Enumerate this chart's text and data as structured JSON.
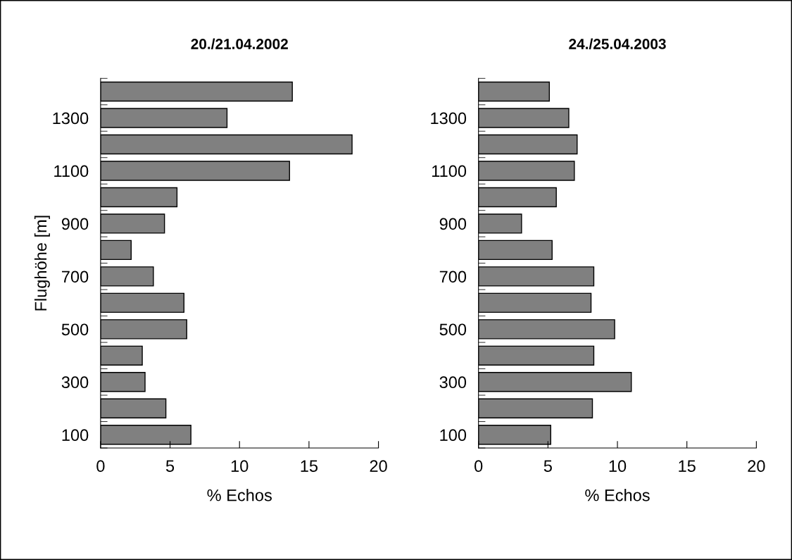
{
  "chart_data": [
    {
      "type": "bar",
      "orientation": "horizontal",
      "title": "20./21.04.2002",
      "xlabel": "% Echos",
      "ylabel": "Flughöhe [m]",
      "categories": [
        null,
        "1300",
        null,
        "1100",
        null,
        "900",
        null,
        "700",
        null,
        "500",
        null,
        "300",
        null,
        "100"
      ],
      "values": [
        13.8,
        9.1,
        18.1,
        13.6,
        5.5,
        4.6,
        2.2,
        3.8,
        6.0,
        6.2,
        3.0,
        3.2,
        4.7,
        6.5
      ],
      "color": "#808080",
      "xlim": [
        0,
        20
      ],
      "xticks": [
        0,
        5,
        10,
        15,
        20
      ]
    },
    {
      "type": "bar",
      "orientation": "horizontal",
      "title": "24./25.04.2003",
      "xlabel": "% Echos",
      "categories": [
        null,
        "1300",
        null,
        "1100",
        null,
        "900",
        null,
        "700",
        null,
        "500",
        null,
        "300",
        null,
        "100"
      ],
      "values": [
        5.1,
        6.5,
        7.1,
        6.9,
        5.6,
        3.1,
        5.3,
        8.3,
        8.1,
        9.8,
        8.3,
        11.0,
        8.2,
        5.2
      ],
      "color": "#808080",
      "xlim": [
        0,
        20
      ],
      "xticks": [
        0,
        5,
        10,
        15,
        20
      ]
    }
  ]
}
